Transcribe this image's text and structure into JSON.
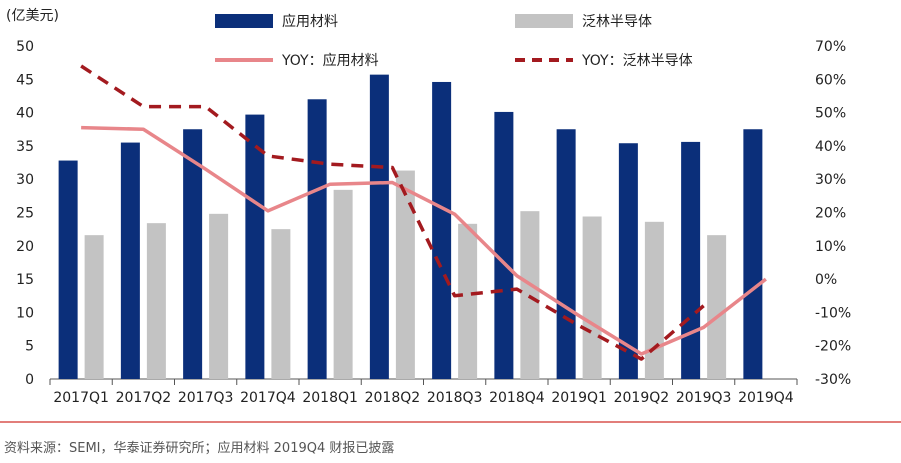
{
  "chart_data": {
    "type": "bar",
    "unit_label": "(亿美元)",
    "categories": [
      "2017Q1",
      "2017Q2",
      "2017Q3",
      "2017Q4",
      "2018Q1",
      "2018Q2",
      "2018Q3",
      "2018Q4",
      "2019Q1",
      "2019Q2",
      "2019Q3",
      "2019Q4"
    ],
    "left_axis": {
      "ylim": [
        0,
        50
      ],
      "ticks": [
        0,
        5,
        10,
        15,
        20,
        25,
        30,
        35,
        40,
        45,
        50
      ]
    },
    "right_axis": {
      "ylim": [
        -30,
        70
      ],
      "ticks": [
        "-30%",
        "-20%",
        "-10%",
        "0%",
        "10%",
        "20%",
        "30%",
        "40%",
        "50%",
        "60%",
        "70%"
      ]
    },
    "series": [
      {
        "name": "应用材料",
        "kind": "bar",
        "axis": "left",
        "color": "#0b2f7a",
        "values": [
          32.8,
          35.5,
          37.5,
          39.7,
          42.0,
          45.7,
          44.6,
          40.1,
          37.5,
          35.4,
          35.6,
          37.5
        ]
      },
      {
        "name": "泛林半导体",
        "kind": "bar",
        "axis": "left",
        "color": "#c3c3c3",
        "values": [
          21.6,
          23.4,
          24.8,
          22.5,
          28.4,
          31.3,
          23.3,
          25.2,
          24.4,
          23.6,
          21.6,
          null
        ]
      },
      {
        "name": "YOY：应用材料",
        "kind": "line",
        "axis": "right",
        "style": "solid",
        "color": "#e8868a",
        "values": [
          45.5,
          45.0,
          33.0,
          20.5,
          28.5,
          29.0,
          19.5,
          1.0,
          -11.0,
          -22.5,
          -14.5,
          0.0
        ]
      },
      {
        "name": "YOY：泛林半导体",
        "kind": "line",
        "axis": "right",
        "style": "dashed",
        "color": "#a31a1f",
        "values": [
          64.0,
          51.8,
          51.8,
          37.0,
          34.5,
          33.5,
          -5.0,
          -3.0,
          -14.0,
          -24.0,
          -8.0,
          null
        ]
      }
    ],
    "grid": false,
    "legend_position": "top"
  },
  "source_note": "资料来源：SEMI，华泰证券研究所；应用材料 2019Q4 财报已披露"
}
